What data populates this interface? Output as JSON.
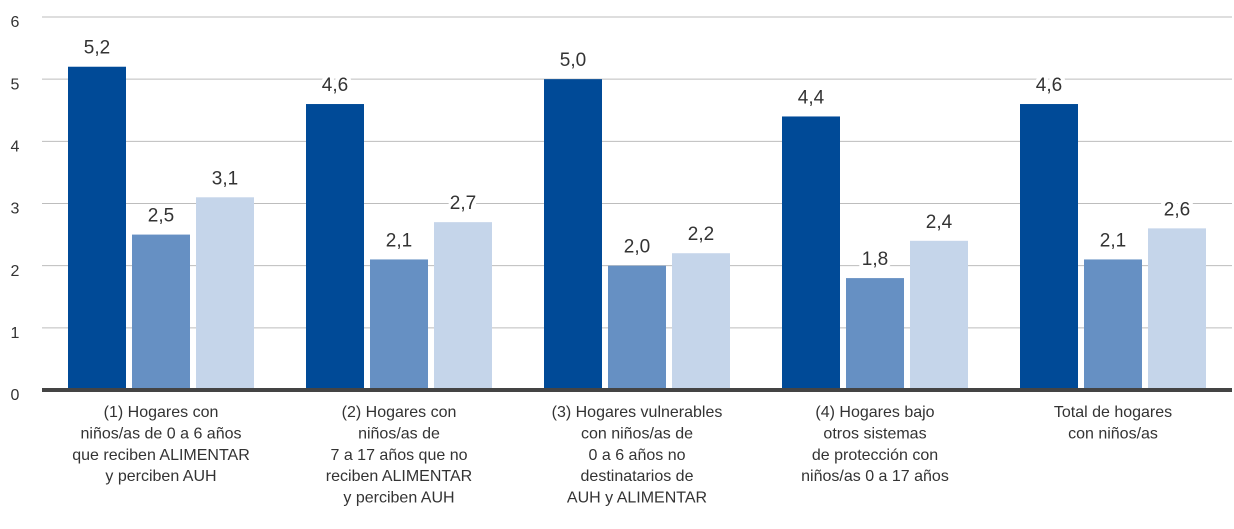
{
  "chart_data": {
    "type": "bar",
    "categories": [
      [
        "(1) Hogares con",
        "niños/as de 0 a 6 años",
        "que reciben ALIMENTAR",
        "y perciben AUH"
      ],
      [
        "(2) Hogares con",
        "niños/as de",
        "7 a 17 años que no",
        "reciben ALIMENTAR",
        "y perciben AUH"
      ],
      [
        "(3) Hogares vulnerables",
        "con niños/as de",
        "0 a 6 años no",
        "destinatarios de",
        "AUH y ALIMENTAR"
      ],
      [
        "(4) Hogares bajo",
        "otros sistemas",
        "de protección con",
        "niños/as 0 a 17 años"
      ],
      [
        "Total de hogares",
        "con niños/as"
      ]
    ],
    "series": [
      {
        "color": "#004a97",
        "values": [
          5.2,
          4.6,
          5.0,
          4.4,
          4.6
        ],
        "value_labels": [
          "5,2",
          "4,6",
          "5,0",
          "4,4",
          "4,6"
        ]
      },
      {
        "color": "#6690c3",
        "values": [
          2.5,
          2.1,
          2.0,
          1.8,
          2.1
        ],
        "value_labels": [
          "2,5",
          "2,1",
          "2,0",
          "1,8",
          "2,1"
        ]
      },
      {
        "color": "#c5d5ea",
        "values": [
          3.1,
          2.7,
          2.2,
          2.4,
          2.6
        ],
        "value_labels": [
          "3,1",
          "2,7",
          "2,2",
          "2,4",
          "2,6"
        ]
      }
    ],
    "ylim": [
      0,
      6
    ],
    "yticks": [
      0,
      1,
      2,
      3,
      4,
      5,
      6
    ],
    "grid": true
  }
}
